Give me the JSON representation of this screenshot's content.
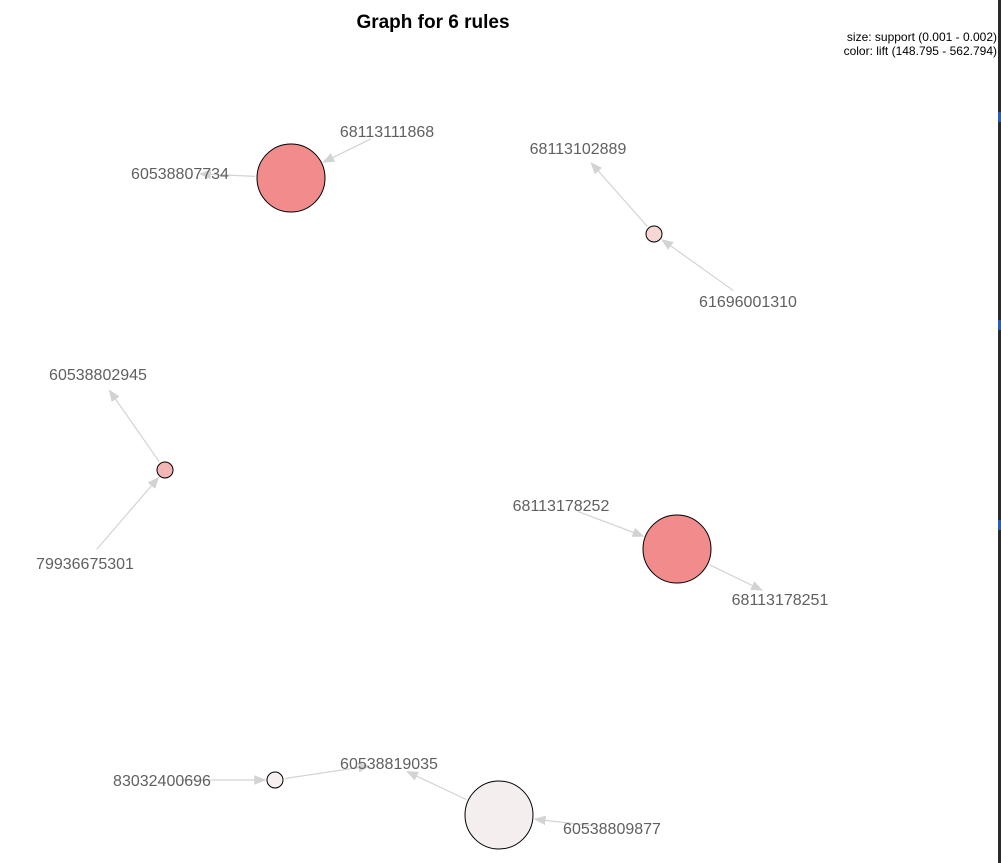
{
  "title": "Graph for 6 rules",
  "legend": {
    "size_line": "size: support (0.001 - 0.002)",
    "color_line": "color: lift (148.795 - 562.794)"
  },
  "colors": {
    "edge": "#d3d3d3",
    "label": "#606060",
    "node_stroke": "#000000",
    "lift_high": "#f28b8b",
    "lift_low": "#f5eeee"
  },
  "items": [
    {
      "id": "i1",
      "label": "68113111868"
    },
    {
      "id": "i2",
      "label": "60538807734"
    },
    {
      "id": "i3",
      "label": "68113102889"
    },
    {
      "id": "i4",
      "label": "61696001310"
    },
    {
      "id": "i5",
      "label": "60538802945"
    },
    {
      "id": "i6",
      "label": "79936675301"
    },
    {
      "id": "i7",
      "label": "68113178252"
    },
    {
      "id": "i8",
      "label": "68113178251"
    },
    {
      "id": "i9",
      "label": "83032400696"
    },
    {
      "id": "i10",
      "label": "60538819035"
    },
    {
      "id": "i11",
      "label": "60538809877"
    }
  ],
  "rules": [
    {
      "id": "r1",
      "lhs": "68113111868",
      "rhs": "60538807734",
      "support_level": "high",
      "lift_level": "high",
      "color": "#f28b8b"
    },
    {
      "id": "r2",
      "lhs": "61696001310",
      "rhs": "68113102889",
      "support_level": "low",
      "lift_level": "low-mid",
      "color": "#f7d6d6"
    },
    {
      "id": "r3",
      "lhs": "79936675301",
      "rhs": "60538802945",
      "support_level": "low",
      "lift_level": "mid",
      "color": "#f3b6b6"
    },
    {
      "id": "r4",
      "lhs": "68113178252",
      "rhs": "68113178251",
      "support_level": "high",
      "lift_level": "high",
      "color": "#f28b8b"
    },
    {
      "id": "r5",
      "lhs": "83032400696",
      "rhs": "60538819035",
      "support_level": "low",
      "lift_level": "low",
      "color": "#f7f0f0"
    },
    {
      "id": "r6",
      "lhs": "60538809877",
      "rhs": "60538819035",
      "support_level": "high",
      "lift_level": "low",
      "color": "#f5eeee"
    }
  ]
}
